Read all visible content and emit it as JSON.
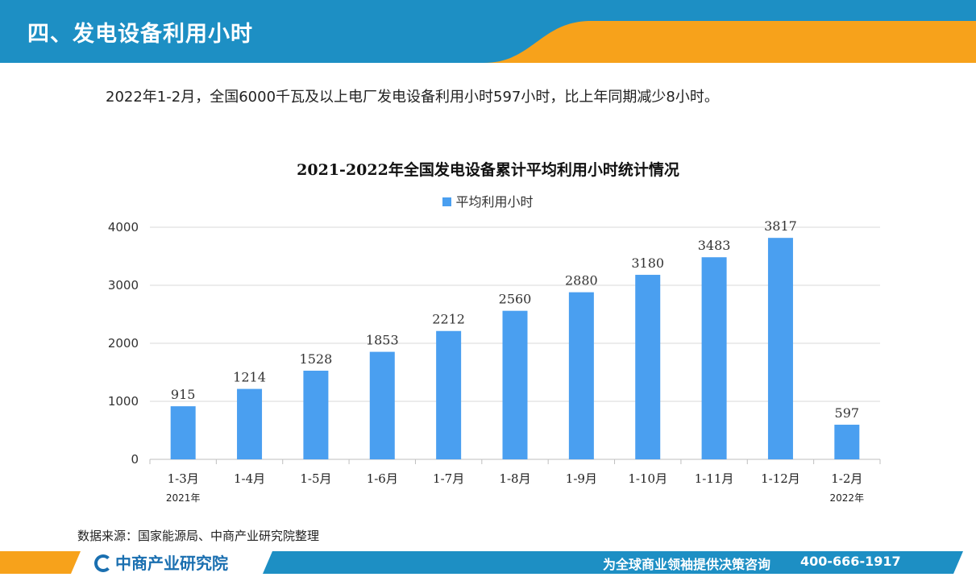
{
  "header": {
    "title": "四、发电设备利用小时"
  },
  "summary": {
    "text": "2022年1-2月，全国6000千瓦及以上电厂发电设备利用小时597小时，比上年同期减少8小时。"
  },
  "chart_data": {
    "type": "bar",
    "title": "2021-2022年全国发电设备累计平均利用小时统计情况",
    "categories": [
      "1-3月",
      "1-4月",
      "1-5月",
      "1-6月",
      "1-7月",
      "1-8月",
      "1-9月",
      "1-10月",
      "1-11月",
      "1-12月",
      "1-2月"
    ],
    "year_labels": [
      {
        "category_index": 0,
        "label": "2021年"
      },
      {
        "category_index": 10,
        "label": "2022年"
      }
    ],
    "series": [
      {
        "name": "平均利用小时",
        "values": [
          915,
          1214,
          1528,
          1853,
          2212,
          2560,
          2880,
          3180,
          3483,
          3817,
          597
        ],
        "color": "#4a9ff0"
      }
    ],
    "ylim": [
      0,
      4000
    ],
    "yticks": [
      0,
      1000,
      2000,
      3000,
      4000
    ],
    "grid": true,
    "legend_position": "top-center",
    "xlabel": "",
    "ylabel": ""
  },
  "source": {
    "text": "数据来源：国家能源局、中商产业研究院整理"
  },
  "footer": {
    "logo_text": "中商产业研究院",
    "slogan": "为全球商业领袖提供决策咨询",
    "phone": "400-666-1917"
  },
  "colors": {
    "header_blue": "#1d8fc4",
    "accent_orange": "#f7a21b",
    "bar_blue": "#4a9ff0"
  }
}
